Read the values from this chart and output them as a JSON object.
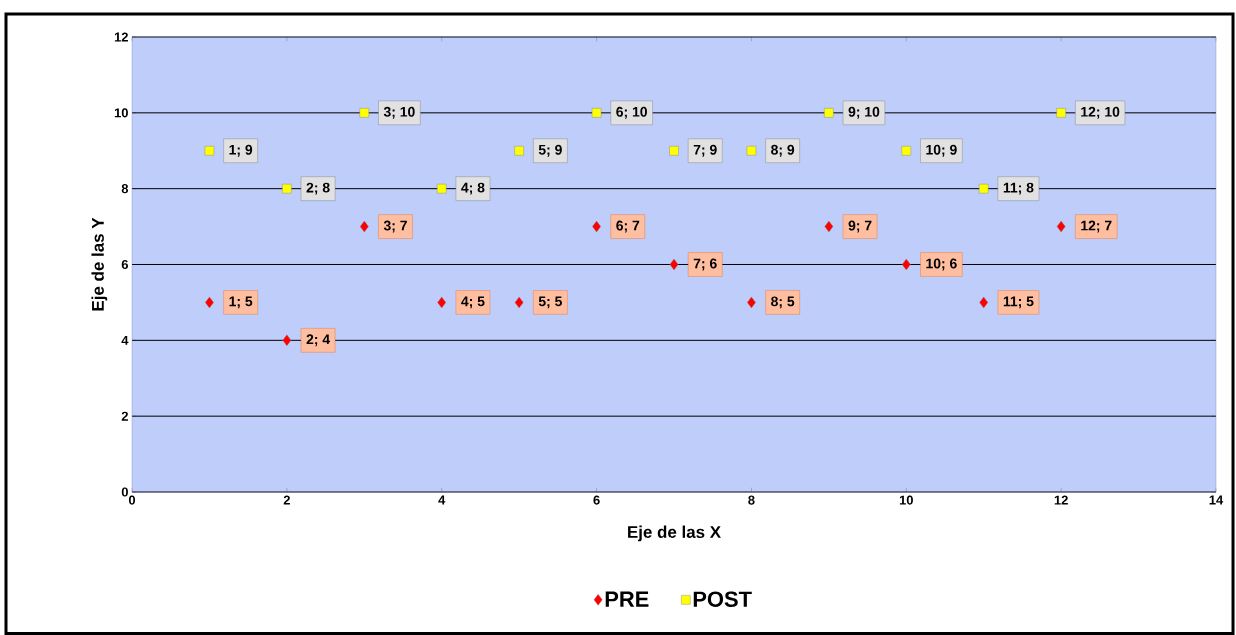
{
  "chart_data": {
    "type": "scatter",
    "xlabel": "Eje de las X",
    "ylabel": "Eje de las Y",
    "x": [
      1,
      2,
      3,
      4,
      5,
      6,
      7,
      8,
      9,
      10,
      11,
      12
    ],
    "series": [
      {
        "name": "PRE",
        "color": "#ff0000",
        "marker": "diamond",
        "values": [
          5,
          4,
          7,
          5,
          5,
          7,
          6,
          5,
          7,
          6,
          5,
          7
        ],
        "value_labels": [
          "1; 5",
          "2; 4",
          "3; 7",
          "4; 5",
          "5; 5",
          "6; 7",
          "7; 6",
          "8; 5",
          "9; 7",
          "10; 6",
          "11; 5",
          "12; 7"
        ]
      },
      {
        "name": "POST",
        "color": "#ffff00",
        "marker": "square",
        "values": [
          9,
          8,
          10,
          8,
          9,
          10,
          9,
          9,
          10,
          9,
          8,
          10
        ],
        "value_labels": [
          "1; 9",
          "2; 8",
          "3; 10",
          "4; 8",
          "5; 9",
          "6; 10",
          "7; 9",
          "8; 9",
          "9; 10",
          "10; 9",
          "11; 8",
          "12; 10"
        ]
      }
    ],
    "xlim": [
      0,
      14
    ],
    "xticks": [
      0,
      2,
      4,
      6,
      8,
      10,
      12,
      14
    ],
    "ylim": [
      0,
      12
    ],
    "yticks": [
      0,
      2,
      4,
      6,
      8,
      10,
      12
    ],
    "grid": "y",
    "legend": "bottom"
  }
}
